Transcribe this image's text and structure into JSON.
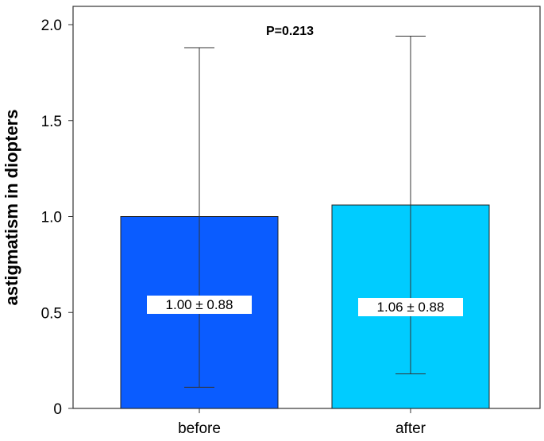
{
  "chart_data": {
    "type": "bar",
    "categories": [
      "before",
      "after"
    ],
    "values": [
      1.0,
      1.06
    ],
    "error_low": [
      0.11,
      0.18
    ],
    "error_high": [
      1.88,
      1.94
    ],
    "value_labels": [
      "1.00 ± 0.88",
      "1.06 ± 0.88"
    ],
    "bar_colors": [
      "#0a5cff",
      "#00ccff"
    ],
    "annotation": "P=0.213",
    "title": "",
    "xlabel": "",
    "ylabel": "astigmatism in diopters",
    "ylim": [
      0,
      2.0
    ],
    "yticks": [
      0,
      0.5,
      1.0,
      1.5,
      2.0
    ],
    "ytick_labels": [
      "0",
      "0.5",
      "1.0",
      "1.5",
      "2.0"
    ],
    "grid": false,
    "legend": "none"
  }
}
